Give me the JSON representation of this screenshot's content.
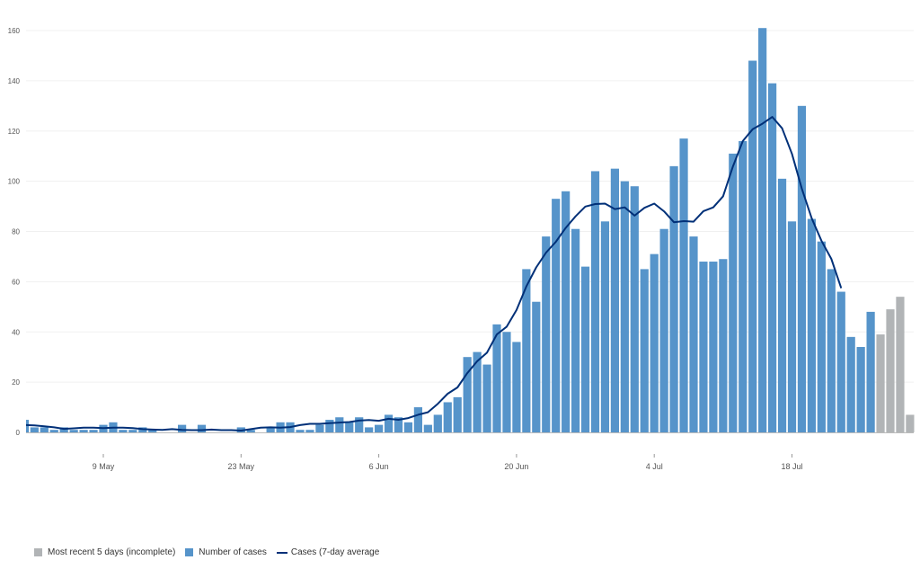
{
  "chart_data": {
    "type": "bar",
    "title": "",
    "xlabel": "",
    "ylabel": "",
    "ylim": [
      0,
      170
    ],
    "yticks": [
      0,
      20,
      40,
      60,
      80,
      100,
      120,
      140,
      160
    ],
    "grid": true,
    "legend_position": "bottom-left",
    "start_date": "2020-05-01",
    "xtick_labels": [
      {
        "date": "2020-05-09",
        "label": "9 May"
      },
      {
        "date": "2020-05-23",
        "label": "23 May"
      },
      {
        "date": "2020-06-06",
        "label": "6 Jun"
      },
      {
        "date": "2020-06-20",
        "label": "20 Jun"
      },
      {
        "date": "2020-07-04",
        "label": "4 Jul"
      },
      {
        "date": "2020-07-18",
        "label": "18 Jul"
      }
    ],
    "colors": {
      "cases": "#5694ca",
      "incomplete": "#b1b4b6",
      "average": "#003078",
      "grid": "#f0f0f0",
      "axis": "#bbbbbb"
    },
    "series": [
      {
        "name": "Number of cases",
        "kind": "bar",
        "values": [
          5,
          2,
          2,
          1,
          2,
          1,
          1,
          1,
          3,
          4,
          1,
          1,
          2,
          1,
          0,
          0,
          3,
          0,
          3,
          0,
          0,
          0,
          2,
          1,
          0,
          2,
          4,
          4,
          1,
          1,
          3,
          5,
          6,
          4,
          6,
          2,
          3,
          7,
          6,
          4,
          10,
          3,
          7,
          12,
          14,
          30,
          32,
          27,
          43,
          40,
          36,
          65,
          52,
          78,
          93,
          96,
          81,
          66,
          104,
          84,
          105,
          100,
          98,
          65,
          71,
          81,
          106,
          117,
          78,
          68,
          68,
          69,
          111,
          116,
          148,
          161,
          139,
          101,
          84,
          130,
          85,
          76,
          65,
          56,
          38,
          34,
          48
        ]
      },
      {
        "name": "Most recent 5 days (incomplete)",
        "kind": "bar",
        "offset_days": 87,
        "values": [
          39,
          49,
          54,
          7
        ]
      },
      {
        "name": "Cases (7-day average",
        "kind": "line",
        "values": [
          2.9,
          2.8,
          2.4,
          2.0,
          1.4,
          1.6,
          1.9,
          1.9,
          1.7,
          1.9,
          1.9,
          1.7,
          1.3,
          1.1,
          1.0,
          1.3,
          1.0,
          0.9,
          0.9,
          1.1,
          0.9,
          0.9,
          0.7,
          1.3,
          1.9,
          2.0,
          1.9,
          2.1,
          2.9,
          3.4,
          3.4,
          3.7,
          3.9,
          4.1,
          4.7,
          4.9,
          4.6,
          5.4,
          5.0,
          5.7,
          7.0,
          8.0,
          11.4,
          15.4,
          17.9,
          23.6,
          28.3,
          31.7,
          39.0,
          42.1,
          48.7,
          58.1,
          65.7,
          71.6,
          75.9,
          81.4,
          86.0,
          89.9,
          90.9,
          91.1,
          88.9,
          89.6,
          86.3,
          89.4,
          91.1,
          88.0,
          83.7,
          84.1,
          83.9,
          88.1,
          89.6,
          94.0,
          105.9,
          116.0,
          120.7,
          122.9,
          125.6,
          121.1,
          110.9,
          97.1,
          85.3,
          76.3,
          69.1,
          57.4
        ]
      }
    ]
  },
  "legend": {
    "items": [
      {
        "label": "Most recent 5 days (incomplete)",
        "color": "#b1b4b6",
        "shape": "square"
      },
      {
        "label": "Number of cases",
        "color": "#5694ca",
        "shape": "square"
      },
      {
        "label": "Cases (7-day average",
        "color": "#003078",
        "shape": "line"
      }
    ]
  }
}
